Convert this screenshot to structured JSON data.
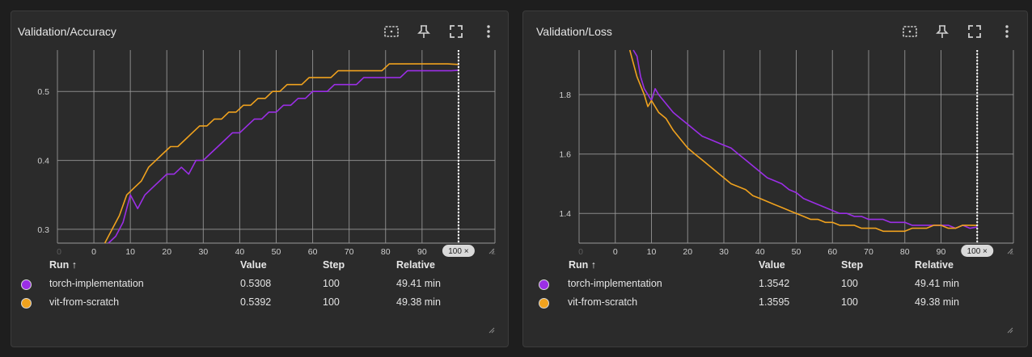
{
  "colors": {
    "torch": "#9b2ee6",
    "vit": "#f0a21e",
    "grid": "#9a9a9a",
    "card_bg": "#2b2b2b",
    "page_bg": "#1e1e1e"
  },
  "toolbar_icons": [
    "fit-domain-icon",
    "pin-icon",
    "fullscreen-icon",
    "more-vert-icon"
  ],
  "table_headers": {
    "run": "Run ↑",
    "value": "Value",
    "step": "Step",
    "relative": "Relative"
  },
  "cards": [
    {
      "title": "Validation/Accuracy",
      "rows": [
        {
          "run": "torch-implementation",
          "value": "0.5308",
          "step": "100",
          "relative": "49.41 min"
        },
        {
          "run": "vit-from-scratch",
          "value": "0.5392",
          "step": "100",
          "relative": "49.38 min"
        }
      ]
    },
    {
      "title": "Validation/Loss",
      "rows": [
        {
          "run": "torch-implementation",
          "value": "1.3542",
          "step": "100",
          "relative": "49.41 min"
        },
        {
          "run": "vit-from-scratch",
          "value": "1.3595",
          "step": "100",
          "relative": "49.38 min"
        }
      ]
    }
  ],
  "chart_data": [
    {
      "type": "line",
      "title": "Validation/Accuracy",
      "xlabel": "",
      "ylabel": "",
      "xlim": [
        -10,
        110
      ],
      "ylim": [
        0.28,
        0.56
      ],
      "x_ticks": [
        "0",
        "10",
        "20",
        "30",
        "40",
        "50",
        "60",
        "70",
        "80",
        "90"
      ],
      "x_ticks_dim": [
        "0",
        "1"
      ],
      "y_ticks": [
        "0.3",
        "0.4",
        "0.5"
      ],
      "step_marker": "100 ×",
      "series": [
        {
          "name": "torch-implementation",
          "x": [
            4,
            6,
            8,
            10,
            12,
            14,
            16,
            18,
            20,
            22,
            24,
            26,
            28,
            30,
            32,
            34,
            36,
            38,
            40,
            42,
            44,
            46,
            48,
            50,
            52,
            54,
            56,
            58,
            60,
            62,
            64,
            66,
            68,
            70,
            72,
            74,
            76,
            78,
            80,
            82,
            84,
            86,
            88,
            90,
            92,
            94,
            96,
            98,
            100
          ],
          "values": [
            0.28,
            0.29,
            0.31,
            0.35,
            0.33,
            0.35,
            0.36,
            0.37,
            0.38,
            0.38,
            0.39,
            0.38,
            0.4,
            0.4,
            0.41,
            0.42,
            0.43,
            0.44,
            0.44,
            0.45,
            0.46,
            0.46,
            0.47,
            0.47,
            0.48,
            0.48,
            0.49,
            0.49,
            0.5,
            0.5,
            0.5,
            0.51,
            0.51,
            0.51,
            0.51,
            0.52,
            0.52,
            0.52,
            0.52,
            0.52,
            0.52,
            0.53,
            0.53,
            0.53,
            0.53,
            0.53,
            0.53,
            0.53,
            0.5308
          ]
        },
        {
          "name": "vit-from-scratch",
          "x": [
            3,
            5,
            7,
            9,
            11,
            13,
            15,
            17,
            19,
            21,
            23,
            25,
            27,
            29,
            31,
            33,
            35,
            37,
            39,
            41,
            43,
            45,
            47,
            49,
            51,
            53,
            55,
            57,
            59,
            61,
            63,
            65,
            67,
            69,
            71,
            73,
            75,
            77,
            79,
            81,
            83,
            85,
            87,
            89,
            91,
            93,
            95,
            97,
            100
          ],
          "values": [
            0.28,
            0.3,
            0.32,
            0.35,
            0.36,
            0.37,
            0.39,
            0.4,
            0.41,
            0.42,
            0.42,
            0.43,
            0.44,
            0.45,
            0.45,
            0.46,
            0.46,
            0.47,
            0.47,
            0.48,
            0.48,
            0.49,
            0.49,
            0.5,
            0.5,
            0.51,
            0.51,
            0.51,
            0.52,
            0.52,
            0.52,
            0.52,
            0.53,
            0.53,
            0.53,
            0.53,
            0.53,
            0.53,
            0.53,
            0.54,
            0.54,
            0.54,
            0.54,
            0.54,
            0.54,
            0.54,
            0.54,
            0.54,
            0.5392
          ]
        }
      ]
    },
    {
      "type": "line",
      "title": "Validation/Loss",
      "xlabel": "",
      "ylabel": "",
      "xlim": [
        -10,
        110
      ],
      "ylim": [
        1.3,
        1.95
      ],
      "x_ticks": [
        "0",
        "10",
        "20",
        "30",
        "40",
        "50",
        "60",
        "70",
        "80",
        "90"
      ],
      "x_ticks_dim": [
        "0",
        "1"
      ],
      "y_ticks": [
        "1.4",
        "1.6",
        "1.8"
      ],
      "step_marker": "100 ×",
      "series": [
        {
          "name": "torch-implementation",
          "x": [
            5,
            6,
            7,
            8,
            10,
            11,
            12,
            14,
            16,
            18,
            20,
            22,
            24,
            26,
            28,
            30,
            32,
            34,
            36,
            38,
            40,
            42,
            44,
            46,
            48,
            50,
            52,
            54,
            56,
            58,
            60,
            62,
            64,
            66,
            68,
            70,
            72,
            74,
            76,
            78,
            80,
            82,
            84,
            86,
            88,
            90,
            92,
            94,
            96,
            98,
            100
          ],
          "values": [
            1.95,
            1.93,
            1.86,
            1.82,
            1.78,
            1.82,
            1.8,
            1.77,
            1.74,
            1.72,
            1.7,
            1.68,
            1.66,
            1.65,
            1.64,
            1.63,
            1.62,
            1.6,
            1.58,
            1.56,
            1.54,
            1.52,
            1.51,
            1.5,
            1.48,
            1.47,
            1.45,
            1.44,
            1.43,
            1.42,
            1.41,
            1.4,
            1.4,
            1.39,
            1.39,
            1.38,
            1.38,
            1.38,
            1.37,
            1.37,
            1.37,
            1.36,
            1.36,
            1.36,
            1.36,
            1.36,
            1.36,
            1.35,
            1.36,
            1.35,
            1.3542
          ]
        },
        {
          "name": "vit-from-scratch",
          "x": [
            4,
            6,
            8,
            9,
            10,
            12,
            14,
            16,
            18,
            20,
            22,
            24,
            26,
            28,
            30,
            32,
            34,
            36,
            38,
            40,
            42,
            44,
            46,
            48,
            50,
            52,
            54,
            56,
            58,
            60,
            62,
            64,
            66,
            68,
            70,
            72,
            74,
            76,
            78,
            80,
            82,
            84,
            86,
            88,
            90,
            92,
            94,
            96,
            98,
            100
          ],
          "values": [
            1.95,
            1.86,
            1.8,
            1.76,
            1.78,
            1.74,
            1.72,
            1.68,
            1.65,
            1.62,
            1.6,
            1.58,
            1.56,
            1.54,
            1.52,
            1.5,
            1.49,
            1.48,
            1.46,
            1.45,
            1.44,
            1.43,
            1.42,
            1.41,
            1.4,
            1.39,
            1.38,
            1.38,
            1.37,
            1.37,
            1.36,
            1.36,
            1.36,
            1.35,
            1.35,
            1.35,
            1.34,
            1.34,
            1.34,
            1.34,
            1.35,
            1.35,
            1.35,
            1.36,
            1.36,
            1.35,
            1.35,
            1.36,
            1.36,
            1.3595
          ]
        }
      ]
    }
  ]
}
